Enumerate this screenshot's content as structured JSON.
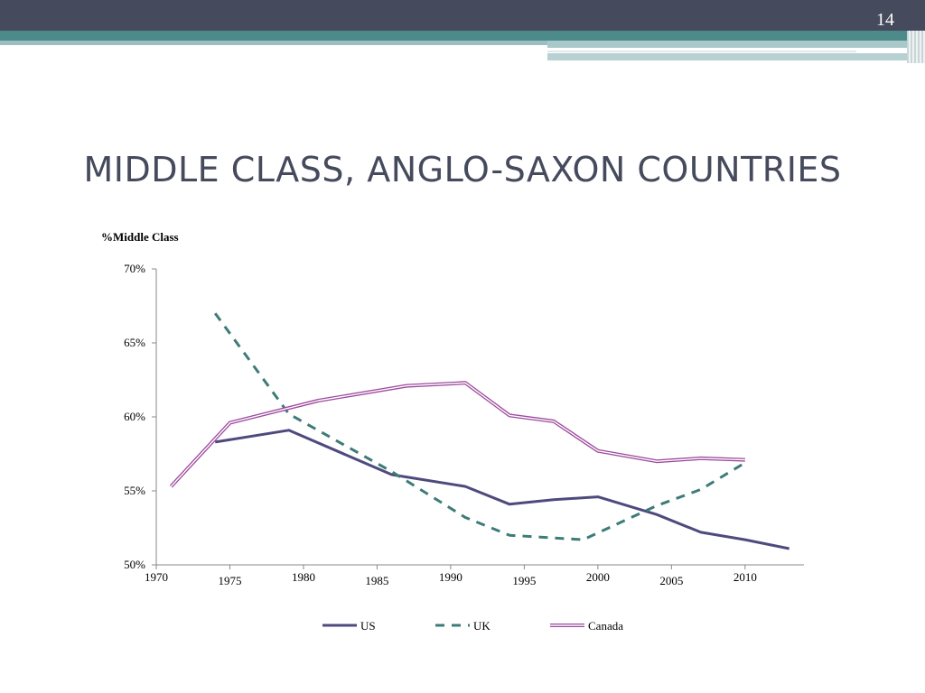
{
  "slide": {
    "page_number": "14",
    "title": "MIDDLE CLASS, ANGLO-SAXON COUNTRIES"
  },
  "chart_data": {
    "type": "line",
    "title": "",
    "ylabel": "%Middle Class",
    "xlabel": "",
    "xlim": [
      1970,
      2014
    ],
    "ylim": [
      50,
      70
    ],
    "yticks": [
      50,
      55,
      60,
      65,
      70
    ],
    "ytick_labels": [
      "50%",
      "55%",
      "60%",
      "65%",
      "70%"
    ],
    "xticks": [
      1970,
      1975,
      1980,
      1985,
      1990,
      1995,
      2000,
      2005,
      2010
    ],
    "xtick_labels": [
      "1970",
      "1975",
      "1980",
      "1985",
      "1990",
      "1995",
      "2000",
      "2005",
      "2010"
    ],
    "legend_position": "bottom",
    "series": [
      {
        "name": "US",
        "color": "#4e4a7e",
        "style": "solid",
        "x": [
          1974,
          1979,
          1986,
          1991,
          1994,
          1997,
          2000,
          2004,
          2007,
          2010,
          2013
        ],
        "y": [
          58.3,
          59.1,
          56.1,
          55.3,
          54.1,
          54.4,
          54.6,
          53.4,
          52.2,
          51.7,
          51.1
        ]
      },
      {
        "name": "UK",
        "color": "#3e7b78",
        "style": "dashed",
        "x": [
          1974,
          1979,
          1986,
          1991,
          1994,
          1999,
          2004,
          2007,
          2010
        ],
        "y": [
          67.0,
          60.2,
          56.3,
          53.2,
          52.0,
          51.7,
          54.0,
          55.1,
          56.9
        ]
      },
      {
        "name": "Canada",
        "color": "#9d4a9d",
        "style": "double",
        "x": [
          1971,
          1975,
          1981,
          1987,
          1991,
          1994,
          1997,
          2000,
          2004,
          2007,
          2010
        ],
        "y": [
          55.3,
          59.6,
          61.1,
          62.1,
          62.3,
          60.1,
          59.7,
          57.7,
          57.0,
          57.2,
          57.1
        ]
      }
    ]
  }
}
